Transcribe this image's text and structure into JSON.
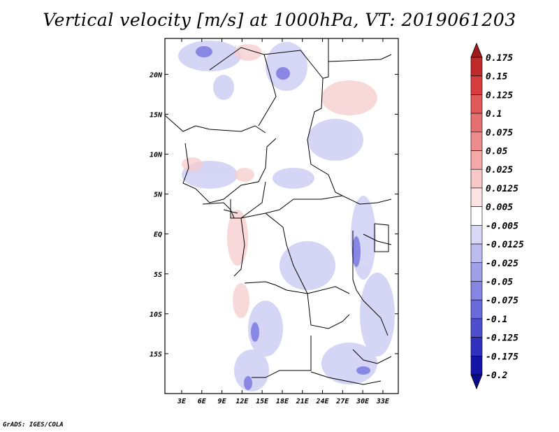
{
  "title": "Vertical velocity [m/s] at 1000hPa, VT: 2019061203",
  "footer": "GrADS: IGES/COLA",
  "map": {
    "lat_labels": [
      "20N",
      "15N",
      "10N",
      "5N",
      "EQ",
      "5S",
      "10S",
      "15S"
    ],
    "lon_labels": [
      "3E",
      "6E",
      "9E",
      "12E",
      "15E",
      "18E",
      "21E",
      "24E",
      "27E",
      "30E",
      "33E"
    ],
    "lat_values": [
      20,
      15,
      10,
      5,
      0,
      -5,
      -10,
      -15
    ],
    "lon_values": [
      3,
      6,
      9,
      12,
      15,
      18,
      21,
      24,
      27,
      30,
      33
    ],
    "lon_range": [
      0.5,
      35.3
    ],
    "lat_range": [
      -20,
      24.5
    ],
    "field": "vertical velocity",
    "units": "m/s"
  },
  "colorbar": {
    "labels": [
      "0.175",
      "0.15",
      "0.125",
      "0.1",
      "0.075",
      "0.05",
      "0.025",
      "0.0125",
      "0.005",
      "-0.005",
      "-0.0125",
      "-0.025",
      "-0.05",
      "-0.075",
      "-0.1",
      "-0.125",
      "-0.175",
      "-0.2"
    ],
    "colors": [
      "#a01a1a",
      "#c02a2a",
      "#d83c3c",
      "#e05858",
      "#e67070",
      "#ec8c8c",
      "#f4a8a8",
      "#f8c8c8",
      "#fce4e4",
      "#ffffff",
      "#d8d8f6",
      "#bcbcf0",
      "#a0a0ea",
      "#8686e2",
      "#6a6ad8",
      "#4e4ece",
      "#3030be",
      "#1414a8",
      "#0a0a8a"
    ]
  }
}
